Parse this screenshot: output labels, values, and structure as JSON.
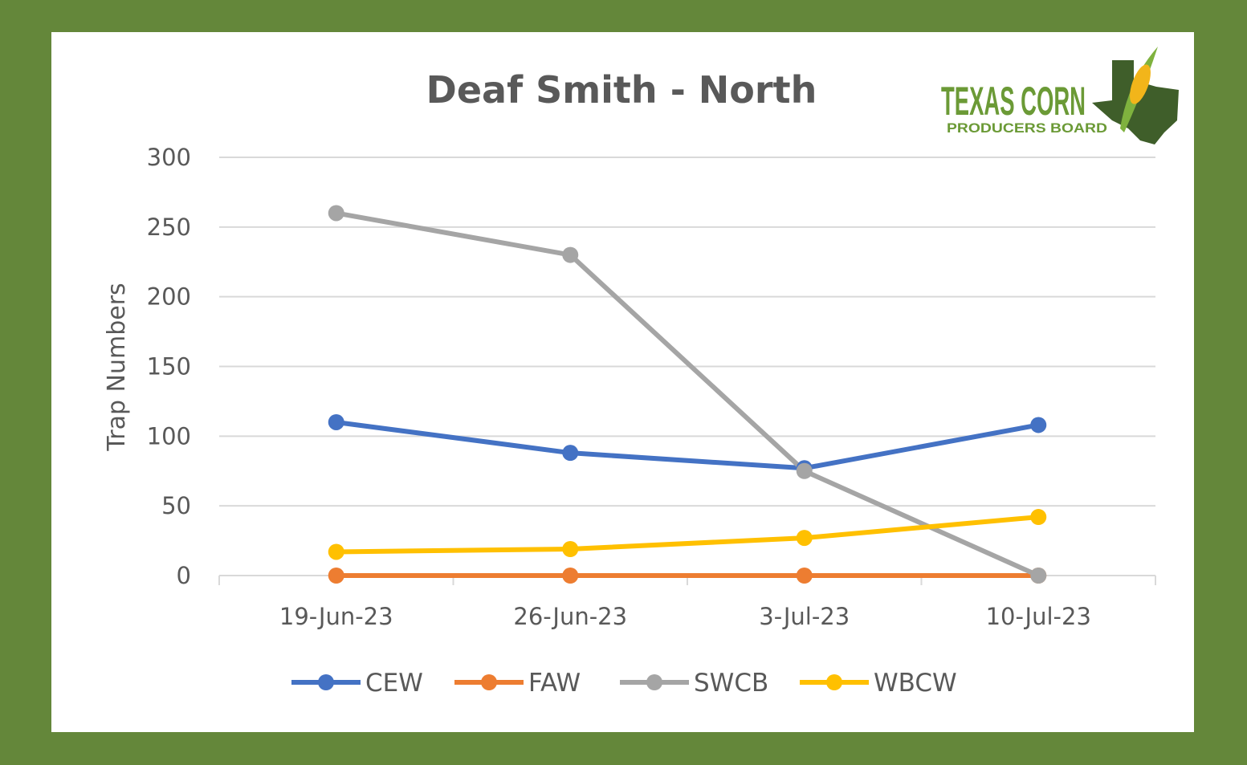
{
  "chart_data": {
    "type": "line",
    "title": "Deaf Smith - North",
    "xlabel": "",
    "ylabel": "Trap Numbers",
    "ylim": [
      0,
      300
    ],
    "yticks": [
      0,
      50,
      100,
      150,
      200,
      250,
      300
    ],
    "grid": true,
    "legend": "bottom",
    "categories": [
      "19-Jun-23",
      "26-Jun-23",
      "3-Jul-23",
      "10-Jul-23"
    ],
    "series": [
      {
        "name": "CEW",
        "color": "#4472c4",
        "values": [
          110,
          88,
          77,
          108
        ]
      },
      {
        "name": "FAW",
        "color": "#ed7d31",
        "values": [
          0,
          0,
          0,
          0
        ]
      },
      {
        "name": "SWCB",
        "color": "#a5a5a5",
        "values": [
          260,
          230,
          75,
          0
        ]
      },
      {
        "name": "WBCW",
        "color": "#ffc000",
        "values": [
          17,
          19,
          27,
          42
        ]
      }
    ]
  },
  "logo": {
    "line1": "TEXAS CORN",
    "line2": "PRODUCERS BOARD"
  }
}
